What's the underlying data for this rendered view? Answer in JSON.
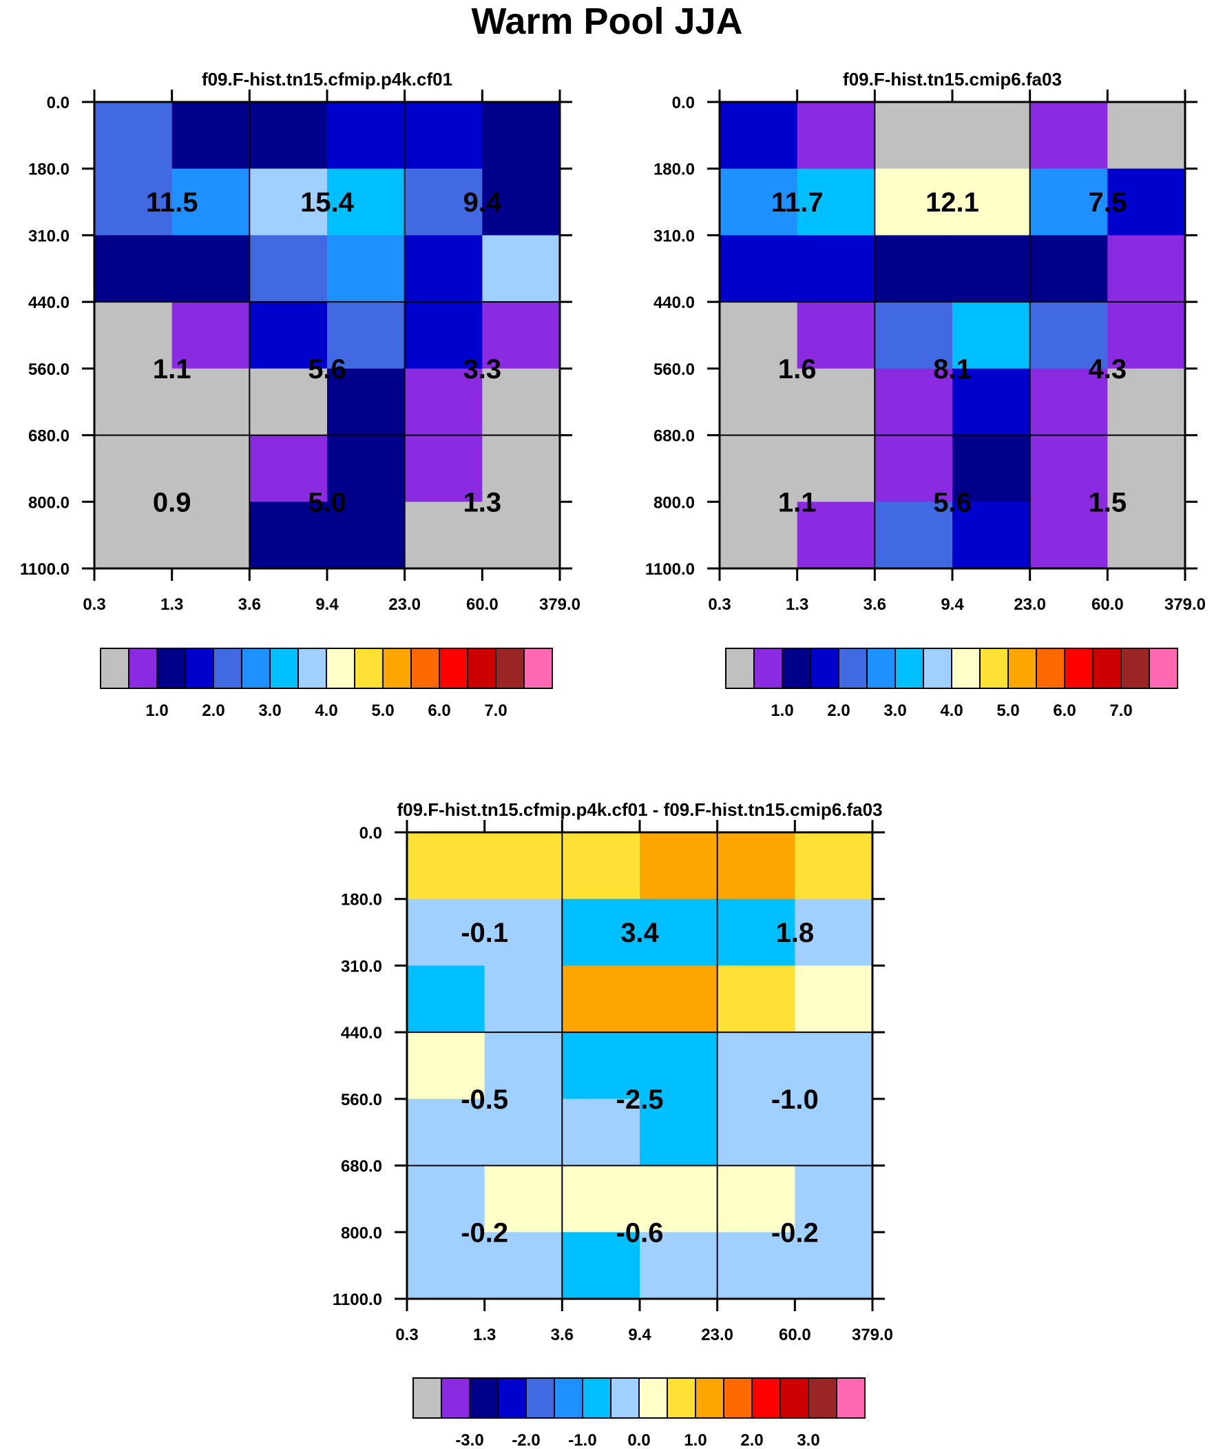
{
  "title": "Warm Pool JJA",
  "colors": {
    "palette": [
      "#c0c0c0",
      "#8a2be2",
      "#00008b",
      "#0000cd",
      "#4169e1",
      "#1e90ff",
      "#00bfff",
      "#a0d0ff",
      "#ffffc8",
      "#ffe135",
      "#ffa500",
      "#ff6a00",
      "#ff0000",
      "#cd0000",
      "#9b2424",
      "#ff69b4"
    ]
  },
  "chart_data": [
    {
      "type": "heatmap",
      "title": "f09.F-hist.tn15.cfmip.p4k.cf01",
      "xticks": [
        "0.3",
        "1.3",
        "3.6",
        "9.4",
        "23.0",
        "60.0",
        "379.0"
      ],
      "yticks": [
        "0.0",
        "180.0",
        "310.0",
        "440.0",
        "560.0",
        "680.0",
        "800.0",
        "1100.0"
      ],
      "cell_color_index": [
        [
          4,
          2,
          2,
          3,
          3,
          2
        ],
        [
          4,
          5,
          7,
          6,
          4,
          2
        ],
        [
          2,
          2,
          4,
          5,
          3,
          7
        ],
        [
          0,
          1,
          3,
          4,
          3,
          1
        ],
        [
          0,
          0,
          0,
          2,
          1,
          0
        ],
        [
          0,
          0,
          1,
          2,
          1,
          0
        ],
        [
          0,
          0,
          2,
          2,
          0,
          0
        ]
      ],
      "group_labels": [
        [
          "11.5",
          "15.4",
          "9.4"
        ],
        [
          "1.1",
          "5.6",
          "3.3"
        ],
        [
          "0.9",
          "5.0",
          "1.3"
        ]
      ],
      "colorbar": {
        "labels": [
          "1.0",
          "2.0",
          "3.0",
          "4.0",
          "5.0",
          "6.0",
          "7.0"
        ]
      }
    },
    {
      "type": "heatmap",
      "title": "f09.F-hist.tn15.cmip6.fa03",
      "xticks": [
        "0.3",
        "1.3",
        "3.6",
        "9.4",
        "23.0",
        "60.0",
        "379.0"
      ],
      "yticks": [
        "0.0",
        "180.0",
        "310.0",
        "440.0",
        "560.0",
        "680.0",
        "800.0",
        "1100.0"
      ],
      "cell_color_index": [
        [
          3,
          1,
          0,
          0,
          1,
          0
        ],
        [
          5,
          6,
          8,
          8,
          5,
          3
        ],
        [
          3,
          3,
          2,
          2,
          2,
          1
        ],
        [
          0,
          1,
          4,
          6,
          4,
          1
        ],
        [
          0,
          0,
          1,
          3,
          1,
          0
        ],
        [
          0,
          0,
          1,
          2,
          1,
          0
        ],
        [
          0,
          1,
          4,
          3,
          1,
          0
        ]
      ],
      "group_labels": [
        [
          "11.7",
          "12.1",
          "7.5"
        ],
        [
          "1.6",
          "8.1",
          "4.3"
        ],
        [
          "1.1",
          "5.6",
          "1.5"
        ]
      ],
      "colorbar": {
        "labels": [
          "1.0",
          "2.0",
          "3.0",
          "4.0",
          "5.0",
          "6.0",
          "7.0"
        ]
      }
    },
    {
      "type": "heatmap",
      "title": "f09.F-hist.tn15.cfmip.p4k.cf01 - f09.F-hist.tn15.cmip6.fa03",
      "xticks": [
        "0.3",
        "1.3",
        "3.6",
        "9.4",
        "23.0",
        "60.0",
        "379.0"
      ],
      "yticks": [
        "0.0",
        "180.0",
        "310.0",
        "440.0",
        "560.0",
        "680.0",
        "800.0",
        "1100.0"
      ],
      "cell_color_index": [
        [
          9,
          9,
          9,
          10,
          10,
          9
        ],
        [
          7,
          7,
          6,
          6,
          6,
          7
        ],
        [
          6,
          7,
          10,
          10,
          9,
          8
        ],
        [
          8,
          7,
          6,
          6,
          7,
          7
        ],
        [
          7,
          7,
          7,
          6,
          7,
          7
        ],
        [
          7,
          8,
          8,
          8,
          8,
          7
        ],
        [
          7,
          7,
          6,
          7,
          7,
          7
        ]
      ],
      "group_labels": [
        [
          "-0.1",
          "3.4",
          "1.8"
        ],
        [
          "-0.5",
          "-2.5",
          "-1.0"
        ],
        [
          "-0.2",
          "-0.6",
          "-0.2"
        ]
      ],
      "colorbar": {
        "labels": [
          "-3.0",
          "-2.0",
          "-1.0",
          "0.0",
          "1.0",
          "2.0",
          "3.0"
        ]
      }
    }
  ]
}
